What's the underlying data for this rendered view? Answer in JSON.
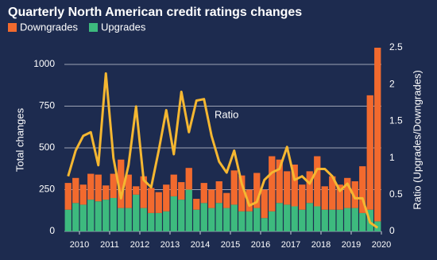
{
  "chart_data": {
    "type": "bar",
    "stacked": true,
    "title": "Quarterly North American credit ratings changes",
    "y_label": "Total changes",
    "y2_label": "Ratio (Upgrades/Downgrades)",
    "annotation": "Ratio",
    "categories": [
      null,
      null,
      null,
      null,
      null,
      null,
      null,
      null,
      null,
      null,
      null,
      null,
      null,
      null,
      null,
      null,
      null,
      null,
      null,
      null,
      null,
      null,
      null,
      null,
      null,
      null,
      null,
      null,
      null,
      null,
      null,
      null,
      null,
      null,
      null,
      null,
      null,
      null,
      null,
      null,
      null,
      null
    ],
    "xlim": [
      2009.5,
      2020
    ],
    "xticks": [
      2010,
      2011,
      2012,
      2013,
      2014,
      2015,
      2016,
      2017,
      2018,
      2019,
      2020
    ],
    "ylim": [
      0,
      1100
    ],
    "yticks": [
      0,
      250,
      500,
      750,
      1000
    ],
    "y2lim": [
      0,
      2.5
    ],
    "y2ticks": [
      0,
      0.5,
      1,
      1.5,
      2,
      2.5
    ],
    "grid": true,
    "series": [
      {
        "name": "Upgrades",
        "color": "#3dba7e",
        "values": [
          130,
          170,
          160,
          190,
          180,
          190,
          200,
          140,
          140,
          220,
          140,
          110,
          110,
          120,
          210,
          190,
          250,
          130,
          170,
          140,
          170,
          140,
          160,
          120,
          120,
          140,
          80,
          120,
          170,
          160,
          150,
          130,
          170,
          150,
          130,
          130,
          130,
          140,
          140,
          110,
          130,
          60
        ]
      },
      {
        "name": "Downgrades",
        "color": "#f26a2e",
        "values": [
          160,
          150,
          120,
          155,
          160,
          85,
          145,
          290,
          200,
          50,
          190,
          150,
          125,
          160,
          130,
          105,
          130,
          65,
          120,
          110,
          130,
          90,
          205,
          215,
          130,
          210,
          170,
          330,
          260,
          200,
          250,
          150,
          190,
          300,
          140,
          200,
          150,
          180,
          160,
          280,
          685,
          1040
        ]
      },
      {
        "name": "Ratio",
        "type": "line",
        "axis": "y2",
        "color": "#f5b731",
        "values": [
          0.75,
          1.1,
          1.3,
          1.35,
          0.9,
          2.15,
          1.0,
          0.45,
          0.9,
          1.7,
          0.7,
          0.6,
          1.1,
          1.65,
          1.05,
          1.9,
          1.35,
          1.78,
          1.8,
          1.3,
          0.95,
          0.8,
          1.1,
          0.65,
          0.35,
          0.4,
          0.7,
          0.8,
          0.85,
          1.15,
          0.7,
          0.75,
          0.65,
          0.85,
          0.85,
          0.75,
          0.55,
          0.65,
          0.45,
          0.45,
          0.12,
          0.05
        ]
      }
    ]
  }
}
